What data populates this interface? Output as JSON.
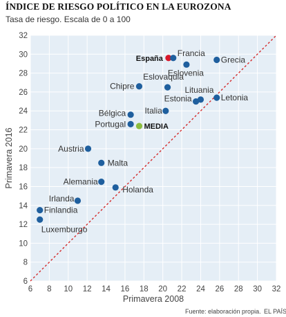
{
  "title": "ÍNDICE DE RIESGO POLÍTICO EN LA EUROZONA",
  "subtitle": "Tasa de riesgo. Escala de 0 a 100",
  "source": "Fuente: elaboración propia.",
  "brand": "EL PAÍS",
  "colors": {
    "plot_background": "#e5eef6",
    "grid": "#ffffff",
    "point": "#1f5f9e",
    "highlight_spain": "#d8182b",
    "highlight_media": "#8cbd3f",
    "diagonal": "#d42a2a"
  },
  "chart_data": {
    "type": "scatter",
    "title": "ÍNDICE DE RIESGO POLÍTICO EN LA EUROZONA",
    "subtitle": "Tasa de riesgo. Escala de 0 a 100",
    "xlabel": "Primavera 2008",
    "ylabel": "Primavera 2016",
    "xlim": [
      6,
      32
    ],
    "ylim": [
      6,
      32
    ],
    "xticks": [
      6,
      8,
      10,
      12,
      14,
      16,
      18,
      20,
      22,
      24,
      26,
      28,
      30,
      32
    ],
    "yticks": [
      6,
      8,
      10,
      12,
      14,
      16,
      18,
      20,
      22,
      24,
      26,
      28,
      30,
      32
    ],
    "grid": true,
    "reference_line": "y = x",
    "points": [
      {
        "label": "España",
        "x": 20.6,
        "y": 29.6,
        "highlight": "spain"
      },
      {
        "label": "Francia",
        "x": 21.1,
        "y": 29.6
      },
      {
        "label": "Grecia",
        "x": 25.7,
        "y": 29.4
      },
      {
        "label": "Eslovenia",
        "x": 22.5,
        "y": 28.9
      },
      {
        "label": "Eslovaquia",
        "x": 20.5,
        "y": 26.5
      },
      {
        "label": "Chipre",
        "x": 17.5,
        "y": 26.6
      },
      {
        "label": "Lituania",
        "x": 24.0,
        "y": 25.2
      },
      {
        "label": "Estonia",
        "x": 23.5,
        "y": 25.0
      },
      {
        "label": "Letonia",
        "x": 25.7,
        "y": 25.4
      },
      {
        "label": "Italia",
        "x": 20.3,
        "y": 24.0
      },
      {
        "label": "Bélgica",
        "x": 16.6,
        "y": 23.6
      },
      {
        "label": "Portugal",
        "x": 16.6,
        "y": 22.6
      },
      {
        "label": "MEDIA",
        "x": 17.5,
        "y": 22.4,
        "highlight": "media"
      },
      {
        "label": "Austria",
        "x": 12.1,
        "y": 20.0
      },
      {
        "label": "Malta",
        "x": 13.5,
        "y": 18.5
      },
      {
        "label": "Alemania",
        "x": 13.5,
        "y": 16.5
      },
      {
        "label": "Holanda",
        "x": 15.0,
        "y": 15.9
      },
      {
        "label": "Irlanda",
        "x": 11.0,
        "y": 14.5
      },
      {
        "label": "Finlandia",
        "x": 7.0,
        "y": 13.5
      },
      {
        "label": "Luxemburgo",
        "x": 7.0,
        "y": 12.5
      }
    ]
  }
}
